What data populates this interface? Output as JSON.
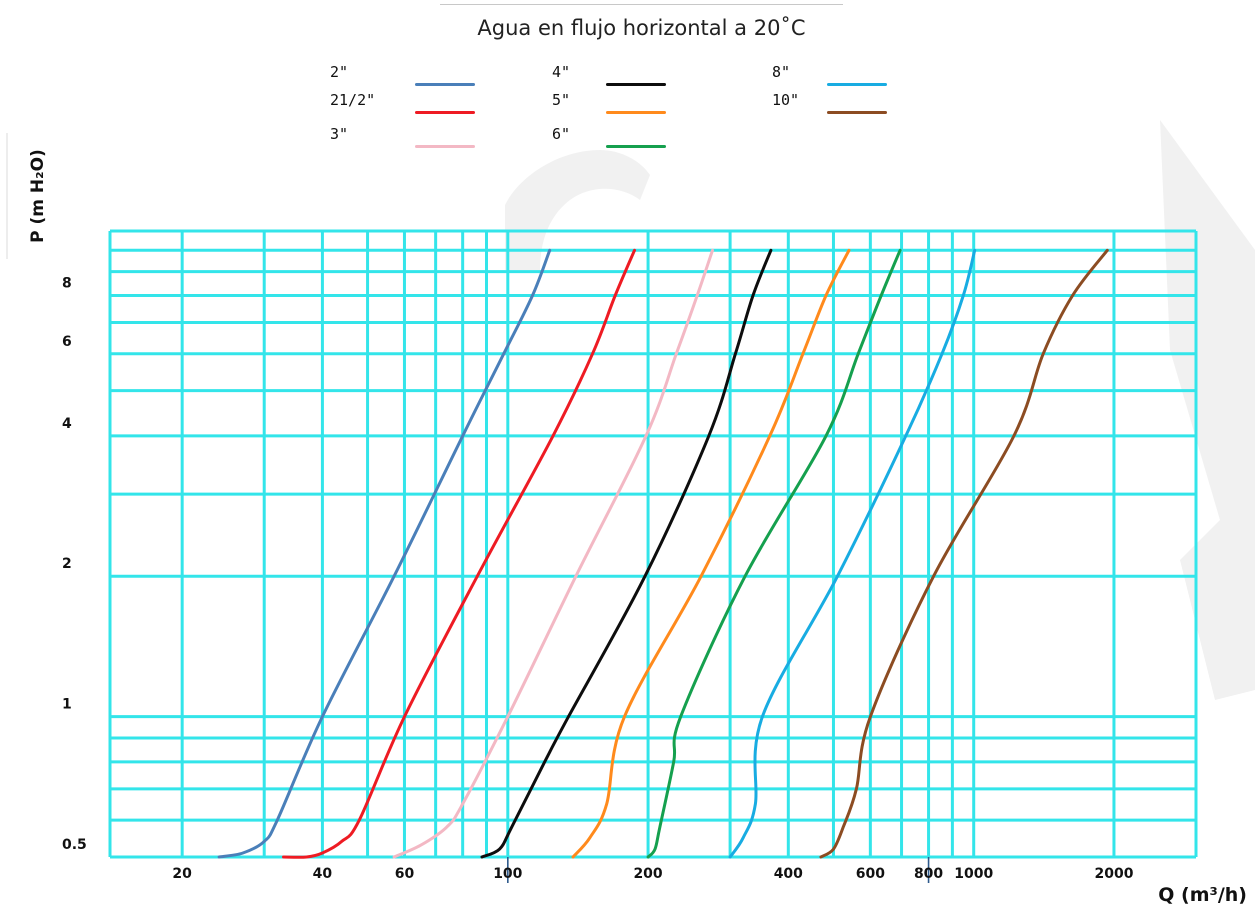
{
  "chart_data": {
    "type": "line",
    "title": "Agua en flujo horizontal a 20˚C",
    "xlabel": "Q (m³/h)",
    "ylabel": "P (m H₂O)",
    "xscale": "log",
    "yscale": "log",
    "xlim": [
      14,
      3000
    ],
    "ylim": [
      0.5,
      11
    ],
    "grid": true,
    "legend_position": "top",
    "x_ticks": [
      20,
      40,
      60,
      100,
      200,
      400,
      600,
      800,
      1000,
      2000
    ],
    "x_tick_labels": [
      "20",
      "40",
      "60",
      "100",
      "200",
      "400",
      "600",
      "800",
      "1000",
      "2000"
    ],
    "y_ticks": [
      0.5,
      1,
      2,
      4,
      6,
      8
    ],
    "y_tick_labels": [
      "0.5",
      "1",
      "2",
      "4",
      "6",
      "8"
    ],
    "x_grid": [
      20,
      30,
      40,
      50,
      60,
      70,
      80,
      90,
      100,
      200,
      300,
      400,
      500,
      600,
      700,
      800,
      900,
      1000,
      2000
    ],
    "y_grid": [
      0.5,
      0.6,
      0.7,
      0.8,
      0.9,
      1,
      2,
      3,
      4,
      5,
      6,
      7,
      8,
      9,
      10
    ],
    "x_markers": [
      100,
      800
    ],
    "series": [
      {
        "name": "2\"",
        "color": "#4a7fb9",
        "points": [
          [
            24,
            0.5
          ],
          [
            27,
            0.51
          ],
          [
            30,
            0.54
          ],
          [
            32,
            0.6
          ],
          [
            40,
            1.0
          ],
          [
            57,
            2.0
          ],
          [
            80,
            4.0
          ],
          [
            98,
            6.0
          ],
          [
            113,
            8.0
          ],
          [
            123,
            10.0
          ]
        ]
      },
      {
        "name": "21/2\"",
        "color": "#ee1b23",
        "points": [
          [
            33,
            0.5
          ],
          [
            37,
            0.5
          ],
          [
            40,
            0.51
          ],
          [
            44,
            0.54
          ],
          [
            48,
            0.6
          ],
          [
            60,
            1.0
          ],
          [
            86,
            2.0
          ],
          [
            125,
            4.0
          ],
          [
            152,
            6.0
          ],
          [
            170,
            8.0
          ],
          [
            187,
            10.0
          ]
        ]
      },
      {
        "name": "3\"",
        "color": "#f3b8c4",
        "points": [
          [
            57,
            0.5
          ],
          [
            65,
            0.53
          ],
          [
            74,
            0.58
          ],
          [
            80,
            0.65
          ],
          [
            100,
            1.0
          ],
          [
            140,
            2.0
          ],
          [
            198,
            4.0
          ],
          [
            230,
            6.0
          ],
          [
            255,
            8.0
          ],
          [
            275,
            10.0
          ]
        ]
      },
      {
        "name": "4\"",
        "color": "#0d0d0d",
        "points": [
          [
            88,
            0.5
          ],
          [
            96,
            0.52
          ],
          [
            102,
            0.58
          ],
          [
            120,
            0.8
          ],
          [
            135,
            1.0
          ],
          [
            197,
            2.0
          ],
          [
            270,
            4.0
          ],
          [
            308,
            6.0
          ],
          [
            336,
            8.0
          ],
          [
            367,
            10.0
          ]
        ]
      },
      {
        "name": "5\"",
        "color": "#ff8a1c",
        "points": [
          [
            138,
            0.5
          ],
          [
            150,
            0.55
          ],
          [
            163,
            0.65
          ],
          [
            178,
            1.0
          ],
          [
            260,
            2.0
          ],
          [
            365,
            4.0
          ],
          [
            430,
            6.0
          ],
          [
            482,
            8.0
          ],
          [
            540,
            10.0
          ]
        ]
      },
      {
        "name": "6\"",
        "color": "#15a04e",
        "points": [
          [
            200,
            0.5
          ],
          [
            207,
            0.52
          ],
          [
            212,
            0.58
          ],
          [
            227,
            0.8
          ],
          [
            235,
            1.0
          ],
          [
            323,
            2.0
          ],
          [
            482,
            4.0
          ],
          [
            565,
            6.0
          ],
          [
            633,
            8.0
          ],
          [
            695,
            10.0
          ]
        ]
      },
      {
        "name": "8\"",
        "color": "#18ace2",
        "points": [
          [
            300,
            0.5
          ],
          [
            320,
            0.55
          ],
          [
            340,
            0.65
          ],
          [
            352,
            1.0
          ],
          [
            510,
            2.0
          ],
          [
            715,
            4.0
          ],
          [
            855,
            6.0
          ],
          [
            950,
            8.0
          ],
          [
            1005,
            10.0
          ]
        ]
      },
      {
        "name": "10\"",
        "color": "#8c4c22",
        "points": [
          [
            470,
            0.5
          ],
          [
            500,
            0.52
          ],
          [
            525,
            0.58
          ],
          [
            560,
            0.7
          ],
          [
            600,
            1.0
          ],
          [
            820,
            2.0
          ],
          [
            1220,
            4.0
          ],
          [
            1410,
            6.0
          ],
          [
            1630,
            8.0
          ],
          [
            1935,
            10.0
          ]
        ]
      }
    ]
  }
}
